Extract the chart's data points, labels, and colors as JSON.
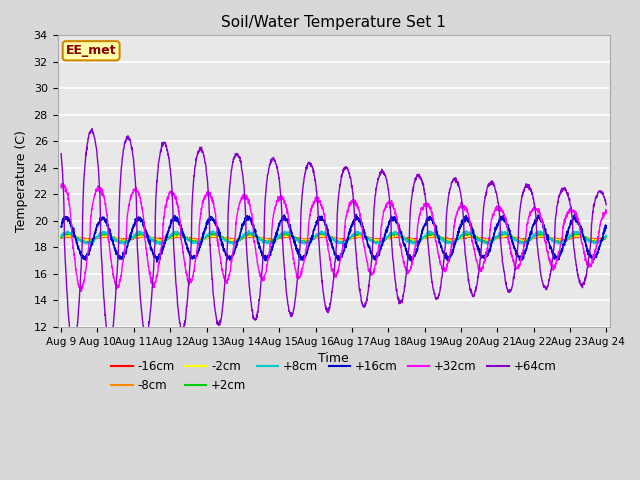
{
  "title": "Soil/Water Temperature Set 1",
  "xlabel": "Time",
  "ylabel": "Temperature (C)",
  "ylim": [
    12,
    34
  ],
  "yticks": [
    12,
    14,
    16,
    18,
    20,
    22,
    24,
    26,
    28,
    30,
    32,
    34
  ],
  "xtick_labels": [
    "Aug 9",
    "Aug 10",
    "Aug 11",
    "Aug 12",
    "Aug 13",
    "Aug 14",
    "Aug 15",
    "Aug 16",
    "Aug 17",
    "Aug 18",
    "Aug 19",
    "Aug 20",
    "Aug 21",
    "Aug 22",
    "Aug 23",
    "Aug 24"
  ],
  "annotation": "EE_met",
  "series": [
    {
      "label": "-16cm",
      "color": "#ff0000"
    },
    {
      "label": "-8cm",
      "color": "#ff8800"
    },
    {
      "label": "-2cm",
      "color": "#ffff00"
    },
    {
      "label": "+2cm",
      "color": "#00cc00"
    },
    {
      "label": "+8cm",
      "color": "#00cccc"
    },
    {
      "label": "+16cm",
      "color": "#0000cc"
    },
    {
      "label": "+32cm",
      "color": "#ff00ff"
    },
    {
      "label": "+64cm",
      "color": "#8800cc"
    }
  ],
  "plot_bg_color": "#e8e8e8",
  "grid_color": "#ffffff",
  "fig_bg_color": "#d8d8d8"
}
